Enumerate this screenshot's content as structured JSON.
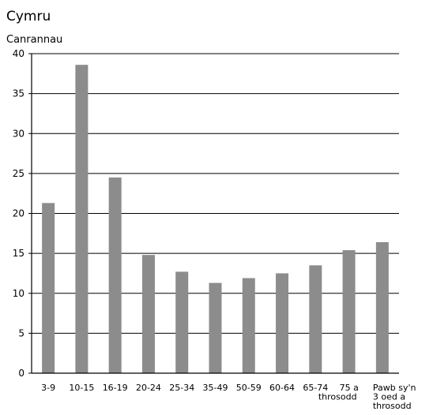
{
  "chart_data": {
    "type": "bar",
    "title": "Cymru",
    "ylabel": "Canrannau",
    "xlabel": "",
    "categories": [
      [
        "3-9"
      ],
      [
        "10-15"
      ],
      [
        "16-19"
      ],
      [
        "20-24"
      ],
      [
        "25-34"
      ],
      [
        "35-49"
      ],
      [
        "50-59"
      ],
      [
        "60-64"
      ],
      [
        "65-74"
      ],
      [
        "75 a",
        "throsodd"
      ],
      [
        "Pawb sy'n",
        "3 oed a",
        "throsodd"
      ]
    ],
    "values": [
      21.3,
      38.6,
      24.5,
      14.8,
      12.7,
      11.3,
      11.9,
      12.5,
      13.5,
      15.4,
      16.4
    ],
    "ylim": [
      0,
      40
    ],
    "yticks": [
      0,
      5,
      10,
      15,
      20,
      25,
      30,
      35,
      40
    ],
    "grid": true,
    "bar_color": "#8c8c8c"
  }
}
